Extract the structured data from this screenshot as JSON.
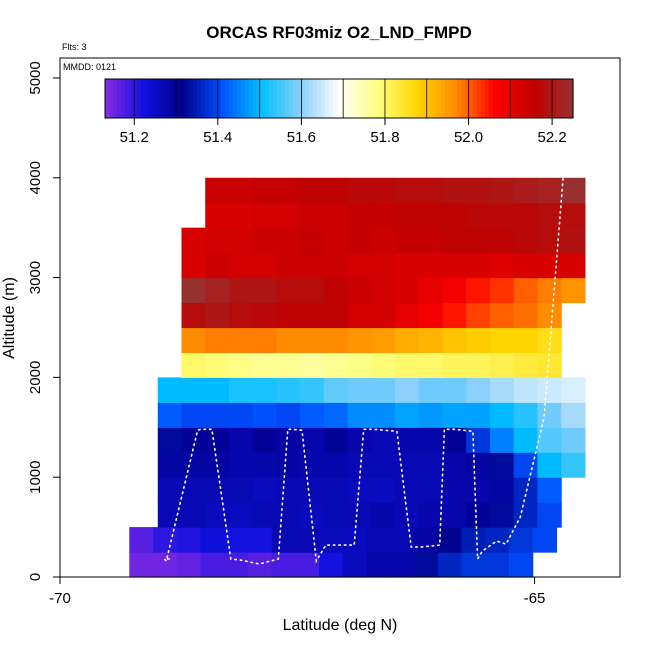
{
  "chart_data": {
    "type": "heatmap",
    "title": "ORCAS RF03miz O2_LND_FMPD",
    "annotations": {
      "flights": "Flts: 3",
      "date": "MMDD: 0121"
    },
    "xlabel": "Latitude (deg N)",
    "ylabel": "Altitude (m)",
    "xlim": [
      -70,
      -64.1
    ],
    "ylim": [
      0,
      5200
    ],
    "x_ticks": [
      -70,
      -65
    ],
    "x_tick_labels": [
      "-70",
      "-65"
    ],
    "y_ticks": [
      0,
      1000,
      2000,
      3000,
      4000,
      5000
    ],
    "y_tick_labels": [
      "0",
      "1000",
      "2000",
      "3000",
      "4000",
      "5000"
    ],
    "grid": false,
    "colorbar": {
      "placement": "top",
      "range": [
        51.13,
        52.25
      ],
      "ticks": [
        51.2,
        51.4,
        51.6,
        51.8,
        52.0,
        52.2
      ],
      "tick_labels": [
        "51.2",
        "51.4",
        "51.6",
        "51.8",
        "52.0",
        "52.2"
      ],
      "colors": [
        "#8a2be2",
        "#1010e0",
        "#00008b",
        "#0050ff",
        "#00bfff",
        "#87cefa",
        "#ffffff",
        "#ffff80",
        "#ffd700",
        "#ff8c00",
        "#ff0000",
        "#c00000",
        "#993030"
      ]
    },
    "cell_width_deg": 0.25,
    "cell_height_m": 250,
    "rows": [
      {
        "alt": 125,
        "x0": -69.27,
        "values": [
          51.15,
          51.15,
          51.16,
          51.18,
          51.18,
          51.17,
          51.18,
          51.18,
          51.22,
          51.26,
          51.28,
          51.28,
          51.33,
          51.36,
          51.38,
          51.38,
          51.4
        ]
      },
      {
        "alt": 375,
        "x0": -69.27,
        "values": [
          51.17,
          51.2,
          51.21,
          51.23,
          51.22,
          51.22,
          51.27,
          51.27,
          51.26,
          51.26,
          51.27,
          51.27,
          51.29,
          51.32,
          51.35,
          51.36,
          51.38,
          51.4
        ]
      },
      {
        "alt": 625,
        "x0": -68.97,
        "values": [
          51.27,
          51.27,
          51.26,
          51.26,
          51.27,
          51.27,
          51.26,
          51.27,
          51.27,
          51.28,
          51.27,
          51.28,
          51.28,
          51.3,
          51.33,
          51.36,
          51.4
        ]
      },
      {
        "alt": 875,
        "x0": -68.97,
        "values": [
          51.27,
          51.27,
          51.27,
          51.27,
          51.26,
          51.27,
          51.27,
          51.27,
          51.26,
          51.26,
          51.27,
          51.27,
          51.28,
          51.28,
          51.29,
          51.36,
          51.42
        ]
      },
      {
        "alt": 1125,
        "x0": -68.97,
        "values": [
          51.29,
          51.29,
          51.29,
          51.28,
          51.28,
          51.29,
          51.28,
          51.28,
          51.27,
          51.27,
          51.27,
          51.27,
          51.28,
          51.29,
          51.33,
          51.4,
          51.5,
          51.54
        ]
      },
      {
        "alt": 1375,
        "x0": -68.97,
        "values": [
          51.33,
          51.3,
          51.3,
          51.28,
          51.3,
          51.29,
          51.28,
          51.3,
          51.28,
          51.27,
          51.28,
          51.28,
          51.3,
          51.38,
          51.45,
          51.5,
          51.56,
          51.58
        ]
      },
      {
        "alt": 1625,
        "x0": -68.97,
        "values": [
          51.42,
          51.4,
          51.4,
          51.4,
          51.41,
          51.4,
          51.42,
          51.43,
          51.46,
          51.46,
          51.48,
          51.47,
          51.48,
          51.48,
          51.5,
          51.53,
          51.58,
          51.62
        ]
      },
      {
        "alt": 1875,
        "x0": -68.97,
        "values": [
          51.5,
          51.5,
          51.5,
          51.52,
          51.52,
          51.53,
          51.54,
          51.57,
          51.58,
          51.58,
          51.6,
          51.58,
          51.58,
          51.6,
          51.62,
          51.64,
          51.65,
          51.66
        ]
      },
      {
        "alt": 2125,
        "x0": -68.72,
        "values": [
          51.8,
          51.79,
          51.78,
          51.77,
          51.77,
          51.76,
          51.77,
          51.78,
          51.79,
          51.8,
          51.8,
          51.81,
          51.81,
          51.82,
          51.83,
          51.84
        ]
      },
      {
        "alt": 2375,
        "x0": -68.72,
        "values": [
          51.97,
          51.98,
          51.98,
          51.98,
          51.97,
          51.97,
          51.97,
          51.96,
          51.95,
          51.93,
          51.92,
          51.9,
          51.89,
          51.88,
          51.88,
          51.86
        ]
      },
      {
        "alt": 2625,
        "x0": -68.72,
        "values": [
          52.18,
          52.2,
          52.18,
          52.17,
          52.16,
          52.16,
          52.16,
          52.13,
          52.13,
          52.1,
          52.08,
          52.05,
          52.02,
          52.0,
          51.99,
          51.97
        ]
      },
      {
        "alt": 2875,
        "x0": -68.72,
        "values": [
          52.25,
          52.22,
          52.2,
          52.2,
          52.18,
          52.18,
          52.16,
          52.14,
          52.13,
          52.12,
          52.1,
          52.08,
          52.05,
          52.03,
          52.0,
          51.98,
          51.96
        ]
      },
      {
        "alt": 3125,
        "x0": -68.72,
        "values": [
          52.12,
          52.14,
          52.13,
          52.13,
          52.14,
          52.14,
          52.14,
          52.13,
          52.13,
          52.12,
          52.12,
          52.12,
          52.12,
          52.11,
          52.12,
          52.12,
          52.12
        ]
      },
      {
        "alt": 3375,
        "x0": -68.72,
        "values": [
          52.12,
          52.13,
          52.13,
          52.14,
          52.14,
          52.15,
          52.14,
          52.15,
          52.14,
          52.15,
          52.15,
          52.16,
          52.16,
          52.16,
          52.17,
          52.18,
          52.19
        ]
      },
      {
        "alt": 3625,
        "x0": -68.47,
        "values": [
          52.12,
          52.12,
          52.13,
          52.13,
          52.14,
          52.14,
          52.15,
          52.15,
          52.16,
          52.16,
          52.16,
          52.17,
          52.17,
          52.17,
          52.18,
          52.18
        ]
      },
      {
        "alt": 3875,
        "x0": -68.47,
        "values": [
          52.14,
          52.14,
          52.15,
          52.15,
          52.16,
          52.16,
          52.17,
          52.17,
          52.18,
          52.18,
          52.19,
          52.19,
          52.2,
          52.21,
          52.22,
          52.25
        ]
      }
    ],
    "flight_track": {
      "x": [
        -68.85,
        -68.9,
        -68.88,
        -68.55,
        -68.52,
        -68.4,
        -68.2,
        -68.1,
        -67.9,
        -67.7,
        -67.6,
        -67.55,
        -67.45,
        -67.3,
        -67.2,
        -66.9,
        -66.8,
        -66.7,
        -66.45,
        -66.3,
        -66.2,
        -66.0,
        -65.95,
        -65.85,
        -65.65,
        -65.6,
        -65.55,
        -65.4,
        -65.3,
        -65.15,
        -64.9,
        -64.7
      ],
      "y": [
        180,
        180,
        160,
        1470,
        1480,
        1480,
        180,
        170,
        130,
        180,
        1480,
        1480,
        1470,
        160,
        320,
        320,
        1480,
        1480,
        1460,
        300,
        300,
        320,
        1480,
        1480,
        1460,
        180,
        260,
        360,
        330,
        600,
        1600,
        4000
      ]
    }
  }
}
